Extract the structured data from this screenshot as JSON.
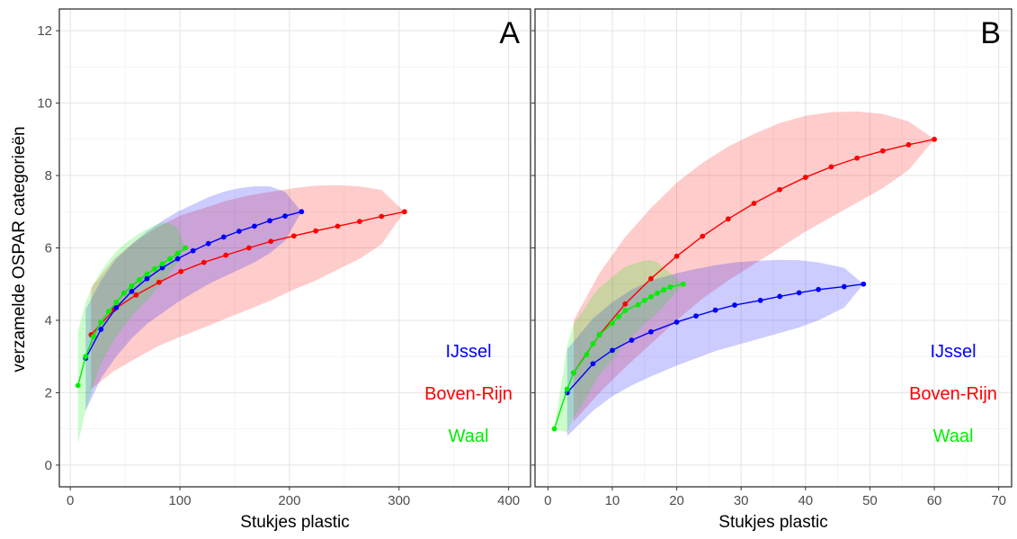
{
  "ylabel": "verzamelde OSPAR categorieën",
  "colors": {
    "IJssel": "#0000ff",
    "Boven-Rijn": "#ff0000",
    "Waal": "#00ee00"
  },
  "chart_data": [
    {
      "type": "line",
      "panel_label": "A",
      "xlabel": "Stukjes plastic",
      "ylabel": "verzamelde OSPAR categorieën",
      "xlim": [
        -10,
        420
      ],
      "ylim": [
        -0.6,
        12.6
      ],
      "xticks": [
        0,
        100,
        200,
        300,
        400
      ],
      "yticks": [
        0,
        2,
        4,
        6,
        8,
        10,
        12
      ],
      "grid": true,
      "legend": {
        "placement": "bottom-right",
        "entries": [
          "IJssel",
          "Boven-Rijn",
          "Waal"
        ]
      },
      "series": [
        {
          "name": "Boven-Rijn",
          "color": "#ff0000",
          "x": [
            19,
            40,
            60,
            81,
            101,
            122,
            142,
            163,
            183,
            204,
            224,
            244,
            264,
            284,
            305
          ],
          "y": [
            3.6,
            4.3,
            4.7,
            5.05,
            5.35,
            5.6,
            5.8,
            6.0,
            6.18,
            6.33,
            6.47,
            6.6,
            6.73,
            6.87,
            7.0
          ],
          "band_x": [
            19,
            40,
            60,
            81,
            101,
            122,
            142,
            163,
            183,
            204,
            224,
            244,
            264,
            284,
            305
          ],
          "band_lower": [
            2.1,
            2.6,
            2.95,
            3.3,
            3.55,
            3.8,
            4.05,
            4.3,
            4.55,
            4.85,
            5.1,
            5.4,
            5.7,
            6.1,
            7.0
          ],
          "band_upper": [
            4.9,
            5.7,
            6.2,
            6.6,
            6.9,
            7.1,
            7.3,
            7.45,
            7.55,
            7.65,
            7.72,
            7.73,
            7.7,
            7.6,
            7.0
          ]
        },
        {
          "name": "IJssel",
          "color": "#0000ff",
          "x": [
            14,
            28,
            42,
            56,
            70,
            84,
            98,
            112,
            126,
            140,
            154,
            168,
            182,
            196,
            211
          ],
          "y": [
            2.95,
            3.75,
            4.35,
            4.8,
            5.15,
            5.45,
            5.7,
            5.92,
            6.12,
            6.3,
            6.46,
            6.6,
            6.75,
            6.88,
            7.0
          ],
          "band_x": [
            14,
            28,
            42,
            56,
            70,
            84,
            98,
            112,
            126,
            140,
            154,
            168,
            182,
            196,
            211
          ],
          "band_lower": [
            1.5,
            2.4,
            3.0,
            3.5,
            3.9,
            4.2,
            4.5,
            4.75,
            5.0,
            5.2,
            5.4,
            5.6,
            5.85,
            6.2,
            7.0
          ],
          "band_upper": [
            4.3,
            5.1,
            5.7,
            6.1,
            6.45,
            6.75,
            7.0,
            7.2,
            7.4,
            7.55,
            7.65,
            7.7,
            7.7,
            7.55,
            7.0
          ]
        },
        {
          "name": "Waal",
          "color": "#00ee00",
          "x": [
            7,
            14,
            21,
            28,
            35,
            42,
            49,
            56,
            63,
            70,
            77,
            84,
            91,
            98,
            105
          ],
          "y": [
            2.2,
            3.0,
            3.55,
            3.95,
            4.25,
            4.5,
            4.75,
            4.95,
            5.12,
            5.28,
            5.42,
            5.56,
            5.7,
            5.85,
            6.0
          ],
          "band_x": [
            7,
            14,
            21,
            28,
            35,
            42,
            49,
            56,
            63,
            70,
            77,
            84,
            91,
            98,
            105
          ],
          "band_lower": [
            0.6,
            1.5,
            2.2,
            2.8,
            3.2,
            3.55,
            3.85,
            4.1,
            4.35,
            4.55,
            4.8,
            5.05,
            5.3,
            5.6,
            6.0
          ],
          "band_upper": [
            3.7,
            4.5,
            5.0,
            5.35,
            5.65,
            5.9,
            6.1,
            6.25,
            6.4,
            6.52,
            6.62,
            6.7,
            6.68,
            6.55,
            6.0
          ]
        }
      ]
    },
    {
      "type": "line",
      "panel_label": "B",
      "xlabel": "Stukjes plastic",
      "xlim": [
        -2,
        72
      ],
      "ylim": [
        -0.6,
        12.6
      ],
      "xticks": [
        0,
        10,
        20,
        30,
        40,
        50,
        60,
        70
      ],
      "yticks": [
        0,
        2,
        4,
        6,
        8,
        10,
        12
      ],
      "grid": true,
      "legend": {
        "placement": "bottom-right",
        "entries": [
          "IJssel",
          "Boven-Rijn",
          "Waal"
        ]
      },
      "series": [
        {
          "name": "Boven-Rijn",
          "color": "#ff0000",
          "x": [
            4,
            8,
            12,
            16,
            20,
            24,
            28,
            32,
            36,
            40,
            44,
            48,
            52,
            56,
            60
          ],
          "y": [
            2.55,
            3.6,
            4.45,
            5.15,
            5.77,
            6.32,
            6.8,
            7.23,
            7.61,
            7.95,
            8.24,
            8.48,
            8.68,
            8.85,
            9.0
          ],
          "band_x": [
            4,
            8,
            12,
            16,
            20,
            24,
            28,
            32,
            36,
            40,
            44,
            48,
            52,
            56,
            60
          ],
          "band_lower": [
            1.2,
            2.0,
            2.7,
            3.35,
            4.0,
            4.6,
            5.1,
            5.55,
            6.0,
            6.45,
            6.85,
            7.25,
            7.65,
            8.15,
            9.0
          ],
          "band_upper": [
            4.0,
            5.3,
            6.3,
            7.1,
            7.8,
            8.35,
            8.8,
            9.15,
            9.45,
            9.65,
            9.75,
            9.77,
            9.7,
            9.5,
            9.0
          ]
        },
        {
          "name": "IJssel",
          "color": "#0000ff",
          "x": [
            3,
            7,
            10,
            13,
            16,
            20,
            23,
            26,
            29,
            33,
            36,
            39,
            42,
            46,
            49
          ],
          "y": [
            2.0,
            2.8,
            3.17,
            3.45,
            3.68,
            3.95,
            4.12,
            4.28,
            4.42,
            4.55,
            4.66,
            4.76,
            4.85,
            4.93,
            5.0
          ],
          "band_x": [
            3,
            7,
            10,
            13,
            16,
            20,
            23,
            26,
            29,
            33,
            36,
            39,
            42,
            46,
            49
          ],
          "band_lower": [
            0.8,
            1.5,
            1.9,
            2.2,
            2.45,
            2.75,
            2.95,
            3.15,
            3.3,
            3.5,
            3.65,
            3.8,
            4.0,
            4.35,
            5.0
          ],
          "band_upper": [
            3.2,
            4.05,
            4.5,
            4.85,
            5.1,
            5.3,
            5.42,
            5.52,
            5.6,
            5.65,
            5.67,
            5.66,
            5.6,
            5.45,
            5.0
          ]
        },
        {
          "name": "Waal",
          "color": "#00ee00",
          "x": [
            1,
            3,
            4,
            6,
            7,
            8,
            10,
            11,
            12,
            14,
            15,
            16,
            17,
            18,
            19,
            21
          ],
          "y": [
            1.0,
            2.1,
            2.55,
            3.05,
            3.35,
            3.6,
            3.92,
            4.1,
            4.27,
            4.43,
            4.55,
            4.65,
            4.75,
            4.84,
            4.92,
            5.0
          ],
          "band_x": [
            1,
            3,
            4,
            6,
            7,
            8,
            10,
            11,
            12,
            14,
            15,
            16,
            17,
            18,
            19,
            21
          ],
          "band_lower": [
            1.0,
            0.9,
            1.3,
            1.85,
            2.2,
            2.5,
            2.9,
            3.15,
            3.4,
            3.7,
            3.9,
            4.05,
            4.2,
            4.4,
            4.6,
            5.0
          ],
          "band_upper": [
            1.0,
            3.3,
            3.9,
            4.4,
            4.7,
            4.9,
            5.2,
            5.35,
            5.48,
            5.6,
            5.65,
            5.66,
            5.6,
            5.45,
            5.3,
            5.0
          ]
        }
      ]
    }
  ]
}
